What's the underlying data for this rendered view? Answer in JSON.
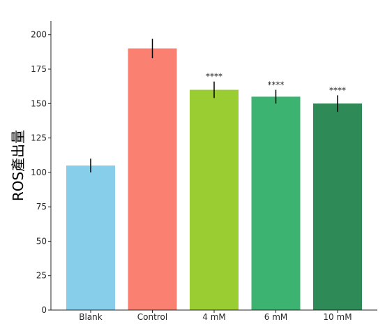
{
  "chart_data": {
    "type": "bar",
    "title": "",
    "xlabel": "",
    "ylabel": "ROS產出量",
    "categories": [
      "Blank",
      "Control",
      "4 mM",
      "6 mM",
      "10 mM"
    ],
    "values": [
      105,
      190,
      160,
      155,
      150
    ],
    "errors": [
      5,
      7,
      6,
      5,
      6
    ],
    "annotations": [
      "",
      "",
      "****",
      "****",
      "****"
    ],
    "colors": [
      "#87CEEB",
      "#FA8072",
      "#9ACD32",
      "#3CB371",
      "#2E8B57"
    ],
    "ylim": [
      0,
      210
    ],
    "yticks": [
      0,
      25,
      50,
      75,
      100,
      125,
      150,
      175,
      200
    ],
    "grid": false,
    "legend": "none"
  }
}
